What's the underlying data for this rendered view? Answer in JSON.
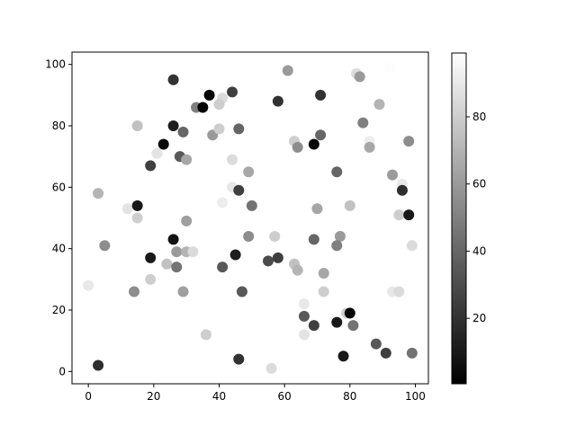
{
  "chart_data": {
    "type": "scatter",
    "title": "",
    "xlabel": "",
    "ylabel": "",
    "xlim": [
      -5,
      104
    ],
    "ylim": [
      -4,
      104
    ],
    "xticks": [
      0,
      20,
      40,
      60,
      80,
      100
    ],
    "yticks": [
      0,
      20,
      40,
      60,
      80,
      100
    ],
    "grid": false,
    "colormap": "gray",
    "colorbar": {
      "range": [
        0.5,
        99
      ],
      "ticks": [
        20,
        40,
        60,
        80
      ]
    },
    "points": [
      [
        26,
        95,
        20
      ],
      [
        37,
        90,
        3
      ],
      [
        44,
        91,
        25
      ],
      [
        33,
        86,
        50
      ],
      [
        35,
        86,
        2
      ],
      [
        41,
        89,
        85
      ],
      [
        40,
        87,
        80
      ],
      [
        15,
        80,
        75
      ],
      [
        26,
        80,
        12
      ],
      [
        29,
        78,
        40
      ],
      [
        38,
        77,
        60
      ],
      [
        40,
        79,
        80
      ],
      [
        46,
        79,
        40
      ],
      [
        23,
        74,
        5
      ],
      [
        21,
        71,
        88
      ],
      [
        28,
        70,
        35
      ],
      [
        30,
        69,
        65
      ],
      [
        19,
        67,
        25
      ],
      [
        44,
        69,
        85
      ],
      [
        44,
        60,
        90
      ],
      [
        46,
        59,
        25
      ],
      [
        49,
        65,
        65
      ],
      [
        3,
        58,
        70
      ],
      [
        41,
        55,
        92
      ],
      [
        50,
        54,
        45
      ],
      [
        12,
        53,
        88
      ],
      [
        15,
        54,
        10
      ],
      [
        15,
        50,
        80
      ],
      [
        30,
        49,
        62
      ],
      [
        26,
        43,
        8
      ],
      [
        27,
        39,
        60
      ],
      [
        30,
        39,
        70
      ],
      [
        32,
        39,
        85
      ],
      [
        24,
        35,
        75
      ],
      [
        27,
        34,
        45
      ],
      [
        5,
        41,
        55
      ],
      [
        19,
        37,
        10
      ],
      [
        19,
        30,
        80
      ],
      [
        14,
        26,
        55
      ],
      [
        29,
        26,
        62
      ],
      [
        0,
        28,
        90
      ],
      [
        36,
        12,
        80
      ],
      [
        3,
        2,
        18
      ],
      [
        41,
        34,
        35
      ],
      [
        45,
        38,
        12
      ],
      [
        47,
        26,
        35
      ],
      [
        46,
        4,
        20
      ],
      [
        55,
        36,
        30
      ],
      [
        58,
        37,
        25
      ],
      [
        49,
        44,
        55
      ],
      [
        57,
        44,
        80
      ],
      [
        63,
        35,
        75
      ],
      [
        64,
        33,
        70
      ],
      [
        66,
        22,
        90
      ],
      [
        66,
        18,
        35
      ],
      [
        69,
        15,
        25
      ],
      [
        66,
        12,
        88
      ],
      [
        56,
        1,
        85
      ],
      [
        69,
        43,
        40
      ],
      [
        61,
        98,
        60
      ],
      [
        82,
        97,
        85
      ],
      [
        83,
        96,
        60
      ],
      [
        92,
        99,
        98
      ],
      [
        58,
        88,
        20
      ],
      [
        71,
        90,
        20
      ],
      [
        89,
        87,
        70
      ],
      [
        84,
        81,
        50
      ],
      [
        71,
        77,
        40
      ],
      [
        63,
        75,
        80
      ],
      [
        64,
        73,
        55
      ],
      [
        69,
        74,
        3
      ],
      [
        86,
        75,
        92
      ],
      [
        86,
        73,
        65
      ],
      [
        98,
        75,
        55
      ],
      [
        76,
        65,
        40
      ],
      [
        93,
        64,
        60
      ],
      [
        96,
        61,
        90
      ],
      [
        96,
        59,
        18
      ],
      [
        80,
        54,
        75
      ],
      [
        70,
        53,
        65
      ],
      [
        95,
        51,
        80
      ],
      [
        98,
        51,
        10
      ],
      [
        77,
        44,
        60
      ],
      [
        76,
        41,
        50
      ],
      [
        99,
        41,
        85
      ],
      [
        72,
        32,
        65
      ],
      [
        72,
        26,
        80
      ],
      [
        93,
        26,
        90
      ],
      [
        95,
        26,
        85
      ],
      [
        79,
        19,
        80
      ],
      [
        80,
        19,
        3
      ],
      [
        76,
        16,
        10
      ],
      [
        81,
        15,
        45
      ],
      [
        88,
        9,
        35
      ],
      [
        91,
        6,
        25
      ],
      [
        99,
        6,
        45
      ],
      [
        78,
        5,
        10
      ]
    ]
  }
}
